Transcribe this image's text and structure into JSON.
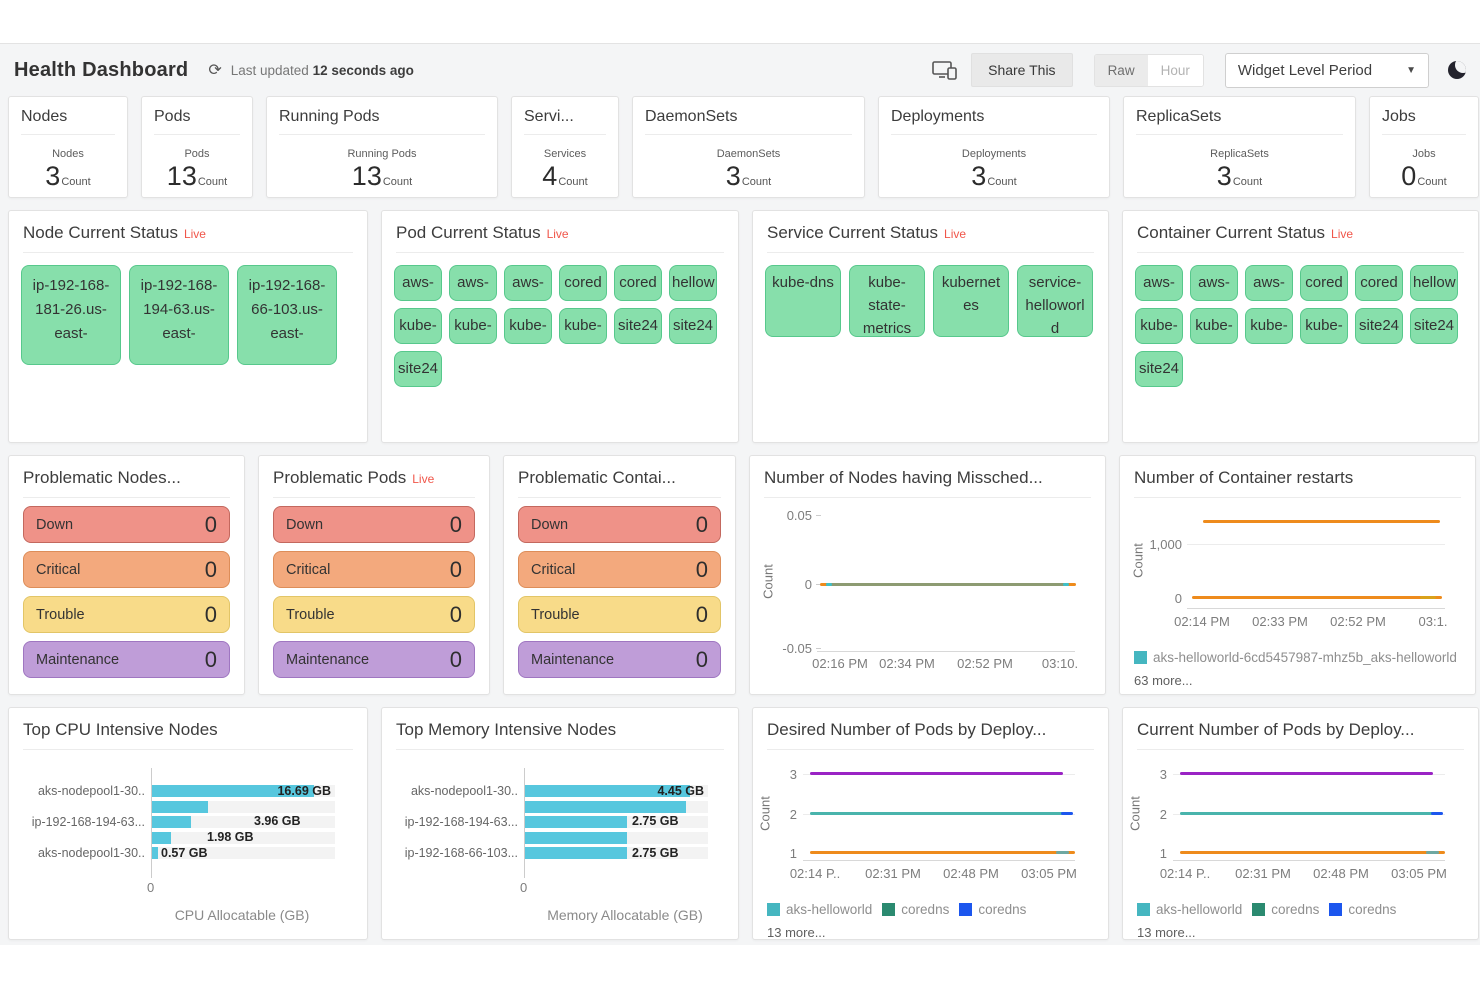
{
  "header": {
    "title": "Health Dashboard",
    "last_updated_prefix": "Last updated",
    "last_updated_value": "12 seconds ago",
    "share_button_label": "Share This",
    "toggle": {
      "raw": "Raw",
      "hour": "Hour",
      "selected": "Raw"
    },
    "period_dropdown_label": "Widget Level Period",
    "icons": [
      "refresh-icon",
      "devices-icon",
      "dropdown-caret-icon",
      "dark-mode-moon-icon"
    ]
  },
  "stat_cards": [
    {
      "title": "Nodes",
      "sublabel": "Nodes",
      "value": "3",
      "unit": "Count"
    },
    {
      "title": "Pods",
      "sublabel": "Pods",
      "value": "13",
      "unit": "Count"
    },
    {
      "title": "Running Pods",
      "sublabel": "Running Pods",
      "value": "13",
      "unit": "Count"
    },
    {
      "title": "Servi...",
      "sublabel": "Services",
      "value": "4",
      "unit": "Count"
    },
    {
      "title": "DaemonSets",
      "sublabel": "DaemonSets",
      "value": "3",
      "unit": "Count"
    },
    {
      "title": "Deployments",
      "sublabel": "Deployments",
      "value": "3",
      "unit": "Count"
    },
    {
      "title": "ReplicaSets",
      "sublabel": "ReplicaSets",
      "value": "3",
      "unit": "Count"
    },
    {
      "title": "Jobs",
      "sublabel": "Jobs",
      "value": "0",
      "unit": "Count"
    }
  ],
  "status_widgets": {
    "node": {
      "title": "Node Current Status",
      "live": "Live",
      "status_color": "#87dfab",
      "chips": [
        "ip-192-168-181-26.us-east-",
        "ip-192-168-194-63.us-east-",
        "ip-192-168-66-103.us-east-"
      ]
    },
    "pod": {
      "title": "Pod Current Status",
      "live": "Live",
      "status_color": "#87dfab",
      "chips": [
        "aws-",
        "aws-",
        "aws-",
        "cored",
        "cored",
        "hellow",
        "kube-",
        "kube-",
        "kube-",
        "kube-",
        "site24",
        "site24",
        "site24"
      ]
    },
    "service": {
      "title": "Service Current Status",
      "live": "Live",
      "status_color": "#87dfab",
      "chips": [
        "kube-dns",
        "kube-state-metrics",
        "kubernetes",
        "service-helloworld"
      ]
    },
    "container": {
      "title": "Container Current Status",
      "live": "Live",
      "status_color": "#87dfab",
      "chips": [
        "aws-",
        "aws-",
        "aws-",
        "cored",
        "cored",
        "hellow",
        "kube-",
        "kube-",
        "kube-",
        "kube-",
        "site24",
        "site24",
        "site24"
      ]
    }
  },
  "problem_widgets": {
    "statuses": [
      {
        "label": "Down",
        "bg": "#ef9288",
        "border": "#c3685e"
      },
      {
        "label": "Critical",
        "bg": "#f3a97d",
        "border": "#dd8d59"
      },
      {
        "label": "Trouble",
        "bg": "#f8db89",
        "border": "#e2c567"
      },
      {
        "label": "Maintenance",
        "bg": "#bf9dd8",
        "border": "#9f76c1"
      }
    ],
    "widgets": [
      {
        "title": "Problematic Nodes...",
        "live": "",
        "values": [
          "0",
          "0",
          "0",
          "0"
        ]
      },
      {
        "title": "Problematic Pods",
        "live": "Live",
        "values": [
          "0",
          "0",
          "0",
          "0"
        ]
      },
      {
        "title": "Problematic Contai...",
        "live": "",
        "values": [
          "0",
          "0",
          "0",
          "0"
        ]
      }
    ]
  },
  "chart_data": [
    {
      "id": "misscheduled_nodes",
      "type": "line",
      "title": "Number of Nodes having Missched...",
      "ylabel": "Count",
      "ylim": [
        -0.05,
        0.05
      ],
      "yticks": [
        "0.05",
        "0",
        "-0.05"
      ],
      "xticks": [
        "02:16 PM",
        "02:34 PM",
        "02:52 PM",
        "03:10."
      ],
      "series": [
        {
          "values": [
            0,
            0,
            0,
            0
          ],
          "color": "#8d9b72"
        }
      ],
      "accent_colors": {
        "edge": "#ee8b1c",
        "marker": "#3ec0c9"
      },
      "grid": true,
      "legend_visible": false
    },
    {
      "id": "container_restarts",
      "type": "line",
      "title": "Number of Container restarts",
      "ylabel": "Count",
      "ylim": [
        0,
        1500
      ],
      "yticks": [
        "1,000",
        "0"
      ],
      "xticks": [
        "02:14 PM",
        "02:33 PM",
        "02:52 PM",
        "03:1."
      ],
      "series": [
        {
          "values": [
            1425,
            1425,
            1425,
            1425
          ],
          "color": "#ee8b1c"
        },
        {
          "values": [
            0,
            0,
            0,
            0
          ],
          "color": "#ee8b1c"
        }
      ],
      "legend": [
        {
          "label": "aks-helloworld-6cd5457987-mhz5b_aks-helloworld",
          "color": "#45b6c0"
        }
      ],
      "more_label": "63 more...",
      "grid": true,
      "legend_visible": true
    },
    {
      "id": "top_cpu_nodes",
      "type": "bar",
      "title": "Top CPU Intensive Nodes",
      "xlabel": "CPU Allocatable (GB)",
      "xtick_zero": "0",
      "categories": [
        "aks-nodepool1-30..",
        "",
        "ip-192-168-194-63...",
        "",
        "aks-nodepool1-30.."
      ],
      "values": [
        16.69,
        5.8,
        3.96,
        1.98,
        0.57
      ],
      "value_labels": [
        "16.69 GB",
        "",
        "3.96 GB",
        "1.98 GB",
        "0.57 GB"
      ],
      "xmax": 18.8,
      "bar_color": "#57c7de"
    },
    {
      "id": "top_memory_nodes",
      "type": "bar",
      "title": "Top Memory Intensive Nodes",
      "xlabel": "Memory Allocatable (GB)",
      "xtick_zero": "0",
      "categories": [
        "aks-nodepool1-30..",
        "",
        "ip-192-168-194-63...",
        "",
        "ip-192-168-66-103..."
      ],
      "values": [
        4.45,
        4.35,
        2.75,
        2.75,
        2.75
      ],
      "value_labels": [
        "4.45 GB",
        "",
        "2.75 GB",
        "",
        "2.75 GB"
      ],
      "xmax": 4.95,
      "bar_color": "#57c7de"
    },
    {
      "id": "desired_pods_by_deployment",
      "type": "line",
      "title": "Desired Number of Pods by Deploy...",
      "ylabel": "Count",
      "ylim": [
        1,
        3
      ],
      "yticks": [
        "3",
        "2",
        "1"
      ],
      "xticks": [
        "02:14 P..",
        "02:31 PM",
        "02:48 PM",
        "03:05 PM"
      ],
      "series": [
        {
          "values": [
            3,
            3,
            3,
            3
          ],
          "color": "#9a23c4"
        },
        {
          "values": [
            2,
            2,
            2,
            2
          ],
          "color": "#49b4ac"
        },
        {
          "values": [
            1,
            1,
            1,
            1
          ],
          "color": "#ee8b1c"
        }
      ],
      "legend": [
        {
          "label": "aks-helloworld",
          "color": "#45b6c0"
        },
        {
          "label": "coredns",
          "color": "#2b8a70"
        },
        {
          "label": "coredns",
          "color": "#1c56ee"
        }
      ],
      "more_label": "13 more...",
      "grid": true,
      "legend_visible": true
    },
    {
      "id": "current_pods_by_deployment",
      "type": "line",
      "title": "Current Number of Pods by Deploy...",
      "ylabel": "Count",
      "ylim": [
        1,
        3
      ],
      "yticks": [
        "3",
        "2",
        "1"
      ],
      "xticks": [
        "02:14 P..",
        "02:31 PM",
        "02:48 PM",
        "03:05 PM"
      ],
      "series": [
        {
          "values": [
            3,
            3,
            3,
            3
          ],
          "color": "#9a23c4"
        },
        {
          "values": [
            2,
            2,
            2,
            2
          ],
          "color": "#49b4ac"
        },
        {
          "values": [
            1,
            1,
            1,
            1
          ],
          "color": "#ee8b1c"
        }
      ],
      "legend": [
        {
          "label": "aks-helloworld",
          "color": "#45b6c0"
        },
        {
          "label": "coredns",
          "color": "#2b8a70"
        },
        {
          "label": "coredns",
          "color": "#1c56ee"
        }
      ],
      "more_label": "13 more...",
      "grid": true,
      "legend_visible": true
    }
  ]
}
